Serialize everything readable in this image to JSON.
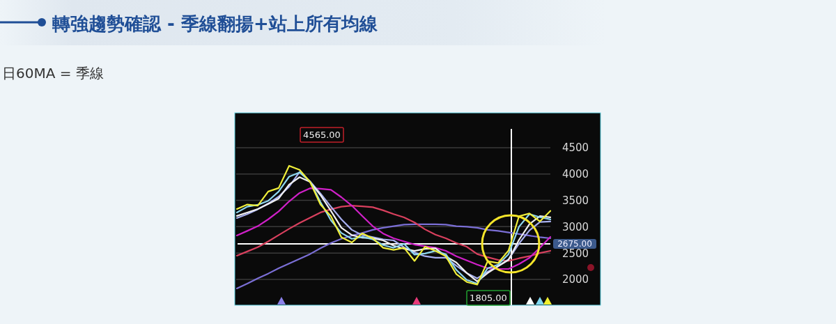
{
  "chart_data": {
    "type": "line",
    "title": "轉強趨勢確認 - 季線翻揚+站上所有均線",
    "subtitle": "日60MA = 季線",
    "categories": [
      null,
      null,
      null,
      null,
      null,
      null,
      null,
      null,
      null,
      null,
      null,
      null,
      null,
      null,
      null,
      null,
      null,
      null,
      null,
      null,
      null,
      null,
      null,
      null,
      null,
      null,
      null,
      null,
      null,
      null,
      null
    ],
    "ylim": [
      1510,
      5160
    ],
    "yticks": [
      2000,
      2500,
      3000,
      3500,
      4000,
      4500
    ],
    "tick_labels": "y",
    "grid": "y",
    "marker": "none",
    "line_style": "solid",
    "series": [
      {
        "color": "#7b6fd6",
        "values": [
          1828,
          1920,
          2020,
          2110,
          2212,
          2300,
          2390,
          2480,
          2590,
          2690,
          2770,
          2830,
          2880,
          2940,
          2980,
          3010,
          3040,
          3045,
          3045,
          3045,
          3040,
          3010,
          3000,
          2980,
          2939,
          2920,
          2890,
          2860,
          2830,
          2800,
          2780
        ]
      },
      {
        "color": "#d9405e",
        "values": [
          2450,
          2530,
          2610,
          2720,
          2840,
          2960,
          3070,
          3170,
          3270,
          3330,
          3380,
          3400,
          3385,
          3370,
          3310,
          3240,
          3177,
          3080,
          2950,
          2850,
          2780,
          2690,
          2620,
          2480,
          2420,
          2370,
          2350,
          2400,
          2440,
          2500,
          2542
        ]
      },
      {
        "color": "#d020c8",
        "values": [
          2833,
          2920,
          3010,
          3140,
          3290,
          3480,
          3640,
          3730,
          3720,
          3700,
          3560,
          3400,
          3204,
          3010,
          2870,
          2780,
          2720,
          2660,
          2630,
          2600,
          2542,
          2440,
          2360,
          2280,
          2212,
          2200,
          2198,
          2290,
          2410,
          2600,
          2807
        ]
      },
      {
        "color": "#a8b0f0",
        "values": [
          3164,
          3240,
          3330,
          3440,
          3570,
          3760,
          4037,
          3860,
          3630,
          3380,
          3140,
          2940,
          2840,
          2800,
          2760,
          2740,
          2608,
          2510,
          2440,
          2410,
          2410,
          2260,
          2120,
          2020,
          2146,
          2250,
          2380,
          2680,
          2930,
          3090,
          3098
        ]
      },
      {
        "color": "#f0f0f0",
        "values": [
          3204,
          3270,
          3336,
          3430,
          3534,
          3800,
          3940,
          3850,
          3600,
          3300,
          2980,
          2840,
          2790,
          2780,
          2740,
          2640,
          2582,
          2540,
          2580,
          2590,
          2437,
          2320,
          2120,
          1960,
          2119,
          2250,
          2370,
          2750,
          3050,
          3200,
          3177
        ]
      },
      {
        "color": "#8fd8f0",
        "values": [
          3270,
          3380,
          3415,
          3490,
          3667,
          3950,
          4030,
          3860,
          3468,
          3120,
          2880,
          2770,
          2807,
          2760,
          2650,
          2600,
          2675,
          2470,
          2490,
          2540,
          2476,
          2180,
          1990,
          1920,
          2212,
          2280,
          2480,
          3000,
          3240,
          3180,
          3138
        ]
      },
      {
        "color": "#f0ef3a",
        "values": [
          3336,
          3420,
          3400,
          3667,
          3733,
          4156,
          4080,
          3850,
          3420,
          3200,
          2800,
          2700,
          2873,
          2780,
          2600,
          2560,
          2600,
          2350,
          2620,
          2542,
          2437,
          2100,
          1950,
          1900,
          2344,
          2310,
          2550,
          3200,
          3250,
          3100,
          3300
        ]
      }
    ],
    "ref_lines": [
      {
        "axis": "y",
        "value": 2675,
        "label": "2675.00",
        "color": "#ffffff"
      }
    ],
    "annotations": [
      "4565.00",
      "1805.00"
    ]
  }
}
